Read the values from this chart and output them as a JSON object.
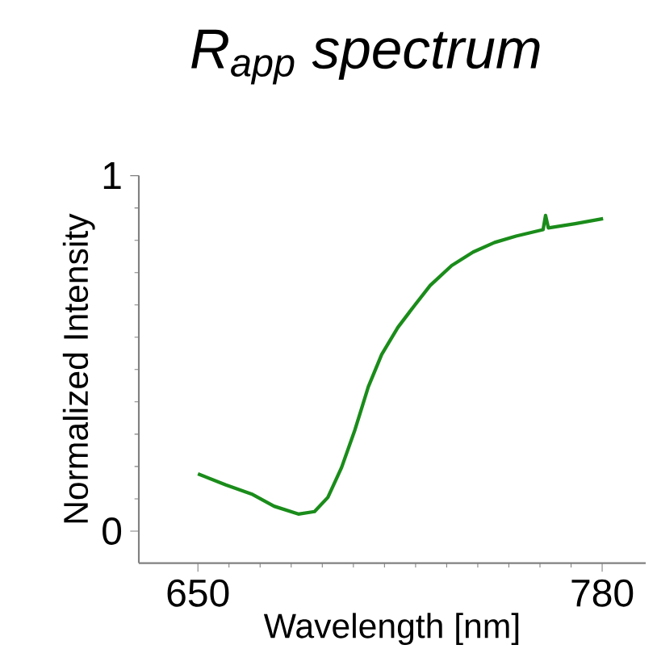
{
  "chart_data": {
    "type": "line",
    "title": "R$_{app}$ spectrum",
    "xlabel": "Wavelength [nm]",
    "ylabel": "Normalized Intensity",
    "xlim": [
      631,
      794
    ],
    "ylim": [
      -0.09,
      1
    ],
    "xticks": [
      650,
      780
    ],
    "yticks": [
      0,
      1
    ],
    "grid": false,
    "marker": "none",
    "line_style": "solid",
    "series": [
      {
        "color": "#1a8c1a",
        "x": [
          650,
          659,
          667.6,
          674.5,
          682.3,
          687.5,
          691.8,
          696.2,
          700.5,
          704.8,
          709.1,
          714.3,
          719.5,
          724.7,
          731.6,
          738.5,
          745.4,
          752.3,
          761,
          761.8,
          762.7,
          771.3,
          780.3
        ],
        "values": [
          0.161,
          0.13,
          0.103,
          0.07,
          0.048,
          0.055,
          0.095,
          0.179,
          0.285,
          0.406,
          0.497,
          0.573,
          0.633,
          0.691,
          0.747,
          0.785,
          0.812,
          0.83,
          0.848,
          0.888,
          0.853,
          0.865,
          0.879
        ]
      }
    ]
  }
}
